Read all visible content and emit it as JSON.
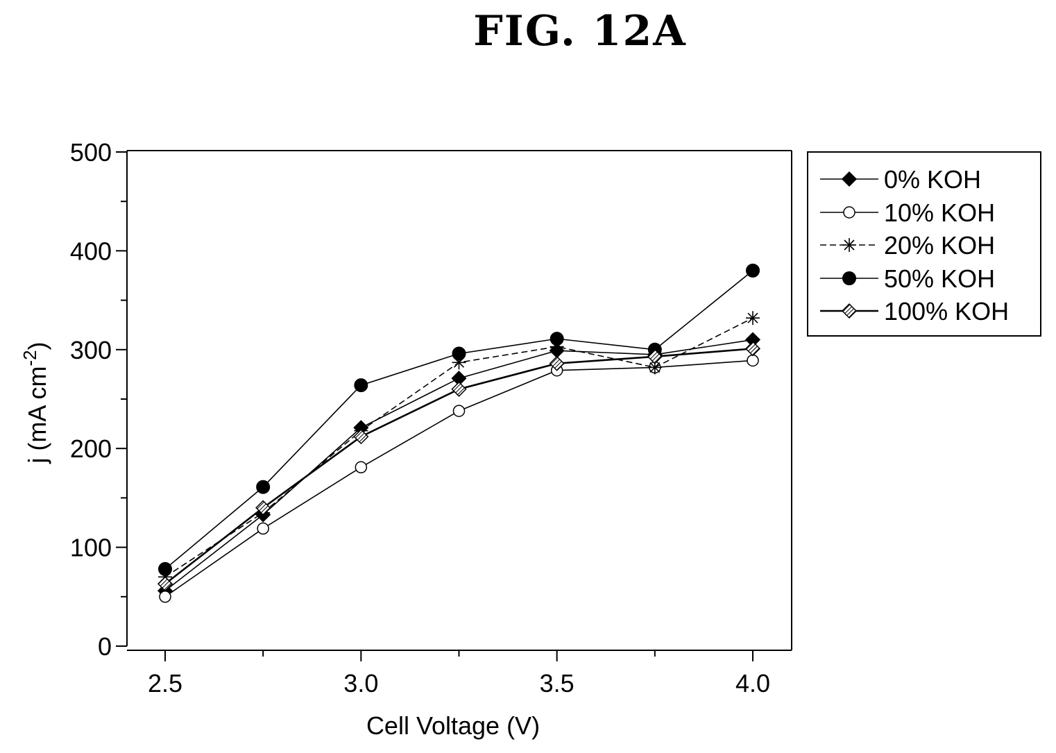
{
  "figure_label": "FIG. 12A",
  "chart_data": {
    "type": "line",
    "title": "",
    "xlabel": "Cell Voltage (V)",
    "ylabel_main": "j (mA cm",
    "ylabel_exp": "-2",
    "ylabel_close": ")",
    "xlim": [
      2.3,
      4.2
    ],
    "ylim": [
      0,
      500
    ],
    "x_ticks": [
      2.5,
      3.0,
      3.5,
      4.0
    ],
    "x_tick_labels": [
      "2.5",
      "3.0",
      "3.5",
      "4.0"
    ],
    "x_minor_ticks": [
      2.75,
      3.25,
      3.75
    ],
    "y_ticks": [
      0,
      100,
      200,
      300,
      400,
      500
    ],
    "y_tick_labels": [
      "0",
      "100",
      "200",
      "300",
      "400",
      "500"
    ],
    "y_minor_ticks": [
      50,
      150,
      250,
      350,
      450
    ],
    "grid": false,
    "legend_position": "outside-right-top",
    "x": [
      2.5,
      2.75,
      3.0,
      3.25,
      3.5,
      3.75,
      4.0
    ],
    "series": [
      {
        "name": "0% KOH",
        "marker": "diamond-filled",
        "dash": "solid",
        "values": [
          56,
          133,
          221,
          271,
          299,
          295,
          310
        ]
      },
      {
        "name": "10% KOH",
        "marker": "circle-open",
        "dash": "solid",
        "values": [
          50,
          119,
          181,
          238,
          279,
          282,
          289
        ]
      },
      {
        "name": "20% KOH",
        "marker": "asterisk",
        "dash": "dashed",
        "values": [
          70,
          135,
          218,
          287,
          303,
          282,
          332
        ]
      },
      {
        "name": "50% KOH",
        "marker": "circle-filled",
        "dash": "solid",
        "values": [
          78,
          161,
          264,
          296,
          311,
          300,
          380
        ]
      },
      {
        "name": "100% KOH",
        "marker": "diamond-hatched",
        "dash": "solid",
        "values": [
          63,
          140,
          212,
          260,
          286,
          293,
          301
        ]
      }
    ]
  }
}
